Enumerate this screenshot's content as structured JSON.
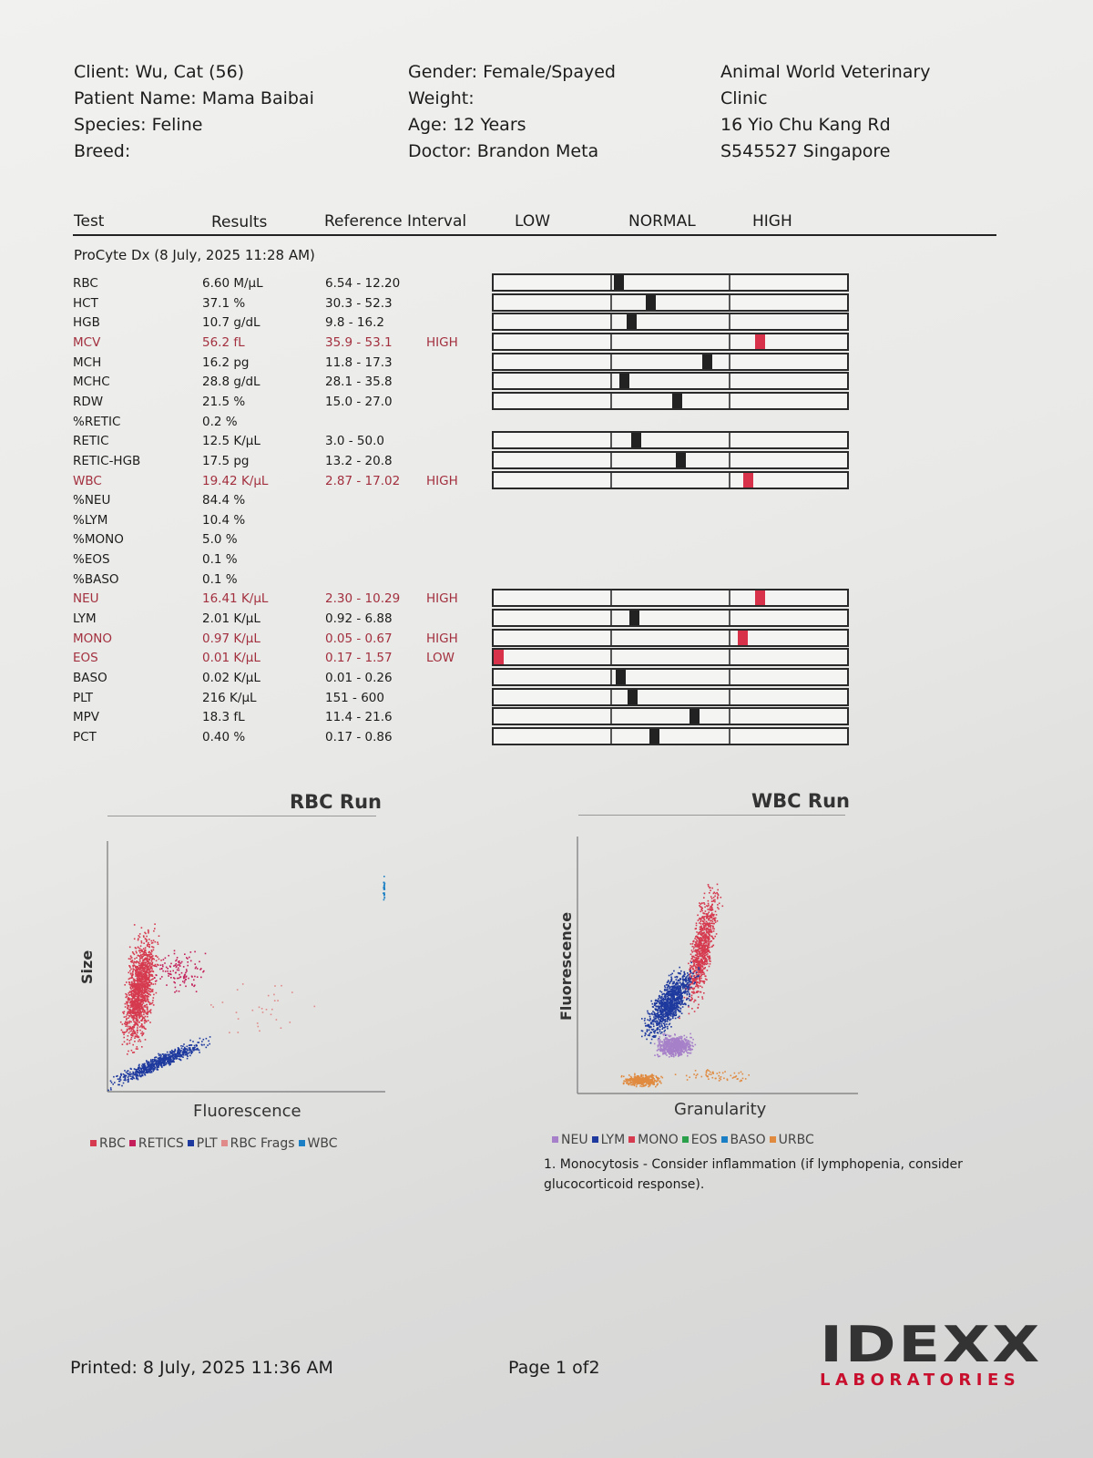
{
  "header": {
    "client": "Client: Wu, Cat (56)",
    "patient": "Patient Name: Mama Baibai",
    "species": "Species: Feline",
    "breed": "Breed:",
    "gender": "Gender: Female/Spayed",
    "weight": "Weight:",
    "age": "Age: 12 Years",
    "doctor": "Doctor: Brandon Meta",
    "clinic_line1": "Animal World Veterinary",
    "clinic_line2": "Clinic",
    "address": "16 Yio Chu Kang Rd",
    "postal": "S545527 Singapore"
  },
  "table_header": {
    "test": "Test",
    "results": "Results",
    "reference": "Reference Interval",
    "low": "LOW",
    "normal": "NORMAL",
    "high": "HIGH"
  },
  "run_title": "ProCyte Dx (8 July, 2025 11:28 AM)",
  "rows": [
    {
      "test": "RBC",
      "result": "6.60 M/µL",
      "ref": "6.54 - 12.20",
      "flag": "",
      "marker": 0.34
    },
    {
      "test": "HCT",
      "result": "37.1 %",
      "ref": "30.3 - 52.3",
      "flag": "",
      "marker": 0.43
    },
    {
      "test": "HGB",
      "result": "10.7 g/dL",
      "ref": "9.8 - 16.2",
      "flag": "",
      "marker": 0.375
    },
    {
      "test": "MCV",
      "result": "56.2 fL",
      "ref": "35.9 - 53.1",
      "flag": "HIGH",
      "marker": 0.74
    },
    {
      "test": "MCH",
      "result": "16.2 pg",
      "ref": "11.8 - 17.3",
      "flag": "",
      "marker": 0.59
    },
    {
      "test": "MCHC",
      "result": "28.8 g/dL",
      "ref": "28.1 - 35.8",
      "flag": "",
      "marker": 0.355
    },
    {
      "test": "RDW",
      "result": "21.5 %",
      "ref": "15.0 - 27.0",
      "flag": "",
      "marker": 0.505
    },
    {
      "test": "%RETIC",
      "result": "0.2 %",
      "ref": "",
      "flag": "",
      "marker": null
    },
    {
      "test": "RETIC",
      "result": "12.5 K/µL",
      "ref": "3.0 - 50.0",
      "flag": "",
      "marker": 0.39
    },
    {
      "test": "RETIC-HGB",
      "result": "17.5 pg",
      "ref": "13.2 - 20.8",
      "flag": "",
      "marker": 0.515
    },
    {
      "test": "WBC",
      "result": "19.42 K/µL",
      "ref": "2.87 - 17.02",
      "flag": "HIGH",
      "marker": 0.705
    },
    {
      "test": "%NEU",
      "result": "84.4 %",
      "ref": "",
      "flag": "",
      "marker": null
    },
    {
      "test": "%LYM",
      "result": "10.4 %",
      "ref": "",
      "flag": "",
      "marker": null
    },
    {
      "test": "%MONO",
      "result": "5.0 %",
      "ref": "",
      "flag": "",
      "marker": null
    },
    {
      "test": "%EOS",
      "result": "0.1 %",
      "ref": "",
      "flag": "",
      "marker": null
    },
    {
      "test": "%BASO",
      "result": "0.1 %",
      "ref": "",
      "flag": "",
      "marker": null
    },
    {
      "test": "NEU",
      "result": "16.41 K/µL",
      "ref": "2.30 - 10.29",
      "flag": "HIGH",
      "marker": 0.74
    },
    {
      "test": "LYM",
      "result": "2.01 K/µL",
      "ref": "0.92 - 6.88",
      "flag": "",
      "marker": 0.385
    },
    {
      "test": "MONO",
      "result": "0.97 K/µL",
      "ref": "0.05 - 0.67",
      "flag": "HIGH",
      "marker": 0.69
    },
    {
      "test": "EOS",
      "result": "0.01 K/µL",
      "ref": "0.17 - 1.57",
      "flag": "LOW",
      "marker": 0.0
    },
    {
      "test": "BASO",
      "result": "0.02 K/µL",
      "ref": "0.01 - 0.26",
      "flag": "",
      "marker": 0.345
    },
    {
      "test": "PLT",
      "result": "216 K/µL",
      "ref": "151 - 600",
      "flag": "",
      "marker": 0.38
    },
    {
      "test": "MPV",
      "result": "18.3 fL",
      "ref": "11.4 - 21.6",
      "flag": "",
      "marker": 0.555
    },
    {
      "test": "PCT",
      "result": "0.40 %",
      "ref": "0.17 - 0.86",
      "flag": "",
      "marker": 0.44
    }
  ],
  "rbc_run": {
    "title": "RBC Run",
    "xlabel": "Fluorescence",
    "ylabel": "Size",
    "legend": [
      {
        "label": "RBC",
        "color": "#d63a4f"
      },
      {
        "label": "RETICS",
        "color": "#c41f5a"
      },
      {
        "label": "PLT",
        "color": "#1f3a9e"
      },
      {
        "label": "RBC Frags",
        "color": "#e08a8a"
      },
      {
        "label": "WBC",
        "color": "#1a7fc4"
      }
    ]
  },
  "wbc_run": {
    "title": "WBC Run",
    "xlabel": "Granularity",
    "ylabel": "Fluorescence",
    "legend": [
      {
        "label": "NEU",
        "color": "#a680c8"
      },
      {
        "label": "LYM",
        "color": "#1f3a9e"
      },
      {
        "label": "MONO",
        "color": "#d63a4f"
      },
      {
        "label": "EOS",
        "color": "#2aa04a"
      },
      {
        "label": "BASO",
        "color": "#1a7fc4"
      },
      {
        "label": "URBC",
        "color": "#e08a40"
      }
    ]
  },
  "comment": "1. Monocytosis - Consider inflammation (if lymphopenia, consider glucocorticoid response).",
  "footer": {
    "printed": "Printed: 8 July, 2025 11:36 AM",
    "page": "Page 1 of2",
    "logo_main": "IDEXX",
    "logo_sub": "LABORATORIES"
  },
  "colors": {
    "abnormal": "#a3303f",
    "marker_abnormal": "#d8324a",
    "logo_red": "#c8102e"
  }
}
